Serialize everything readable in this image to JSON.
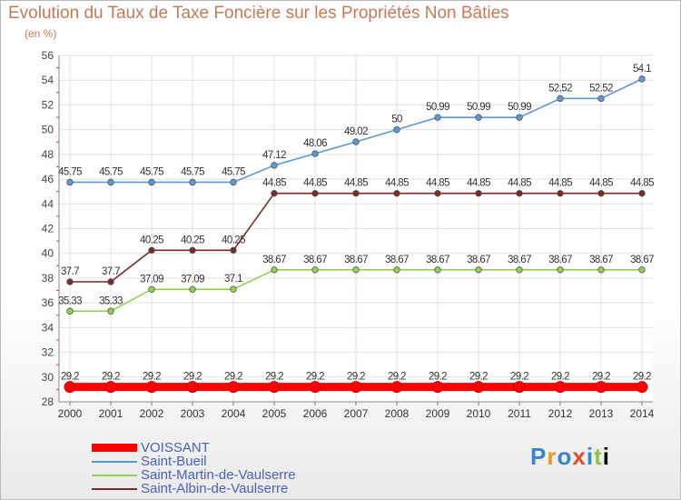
{
  "chart_data": {
    "type": "line",
    "title": "Evolution du Taux de Taxe Foncière sur les Propriétés Non Bâties",
    "subtitle": "(en %)",
    "xlabel": "",
    "ylabel": "",
    "ylim": [
      28,
      56
    ],
    "yticks": [
      28,
      30,
      32,
      34,
      36,
      38,
      40,
      42,
      44,
      46,
      48,
      50,
      52,
      54,
      56
    ],
    "categories": [
      "2000",
      "2001",
      "2002",
      "2003",
      "2004",
      "2005",
      "2006",
      "2007",
      "2008",
      "2009",
      "2010",
      "2011",
      "2012",
      "2013",
      "2014"
    ],
    "grid": true,
    "legend_position": "bottom-left",
    "series": [
      {
        "name": "VOISSANT",
        "color": "#ff0000",
        "values": [
          29.2,
          29.2,
          29.2,
          29.2,
          29.2,
          29.2,
          29.2,
          29.2,
          29.2,
          29.2,
          29.2,
          29.2,
          29.2,
          29.2,
          29.2
        ],
        "labels": [
          "29.2",
          "29.2",
          "29.2",
          "29.2",
          "29.2",
          "29.2",
          "29.2",
          "29.2",
          "29.2",
          "29.2",
          "29.2",
          "29.2",
          "29.2",
          "29.2",
          "29.2"
        ]
      },
      {
        "name": "Saint-Bueil",
        "color": "#5b9bd5",
        "values": [
          45.75,
          45.75,
          45.75,
          45.75,
          45.75,
          47.12,
          48.06,
          49.02,
          50,
          50.99,
          50.99,
          50.99,
          52.52,
          52.52,
          54.1
        ],
        "labels": [
          "45.75",
          "45.75",
          "45.75",
          "45.75",
          "45.75",
          "47.12",
          "48.06",
          "49.02",
          "50",
          "50.99",
          "50.99",
          "50.99",
          "52.52",
          "52.52",
          "54.1"
        ]
      },
      {
        "name": "Saint-Martin-de-Vaulserre",
        "color": "#8fd14f",
        "values": [
          35.33,
          35.33,
          37.09,
          37.09,
          37.1,
          38.67,
          38.67,
          38.67,
          38.67,
          38.67,
          38.67,
          38.67,
          38.67,
          38.67,
          38.67
        ],
        "labels": [
          "35.33",
          "35.33",
          "37.09",
          "37.09",
          "37.1",
          "38.67",
          "38.67",
          "38.67",
          "38.67",
          "38.67",
          "38.67",
          "38.67",
          "38.67",
          "38.67",
          "38.67"
        ]
      },
      {
        "name": "Saint-Albin-de-Vaulserre",
        "color": "#7a2a2a",
        "values": [
          37.7,
          37.7,
          40.25,
          40.25,
          40.25,
          44.85,
          44.85,
          44.85,
          44.85,
          44.85,
          44.85,
          44.85,
          44.85,
          44.85,
          44.85
        ],
        "labels": [
          "37.7",
          "37.7",
          "40.25",
          "40.25",
          "40.25",
          "44.85",
          "44.85",
          "44.85",
          "44.85",
          "44.85",
          "44.85",
          "44.85",
          "44.85",
          "44.85",
          "44.85"
        ]
      }
    ]
  },
  "logo": [
    "P",
    "r",
    "o",
    "x",
    "i",
    "t",
    "i"
  ]
}
